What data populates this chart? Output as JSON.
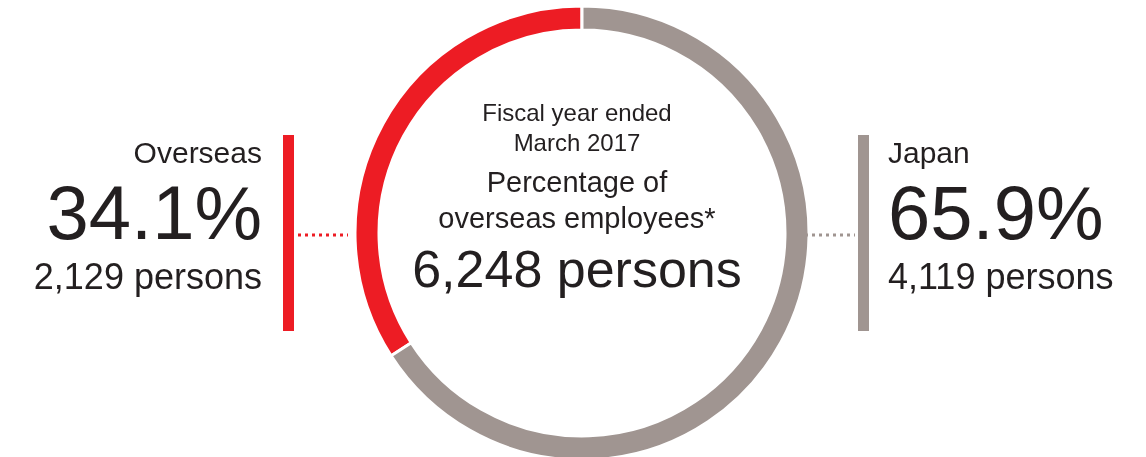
{
  "chart_data": {
    "type": "donut",
    "subtitle": "Fiscal year ended March 2017",
    "title": "Percentage of overseas employees*",
    "categories": [
      "Overseas",
      "Japan"
    ],
    "values": [
      34.1,
      65.9
    ],
    "colors": [
      "#ed1c24",
      "#a09591"
    ],
    "value_labels": [
      "34.1%",
      "65.9%"
    ],
    "annotations": [
      "6,248 persons",
      "2,129 persons",
      "4,119 persons"
    ]
  }
}
